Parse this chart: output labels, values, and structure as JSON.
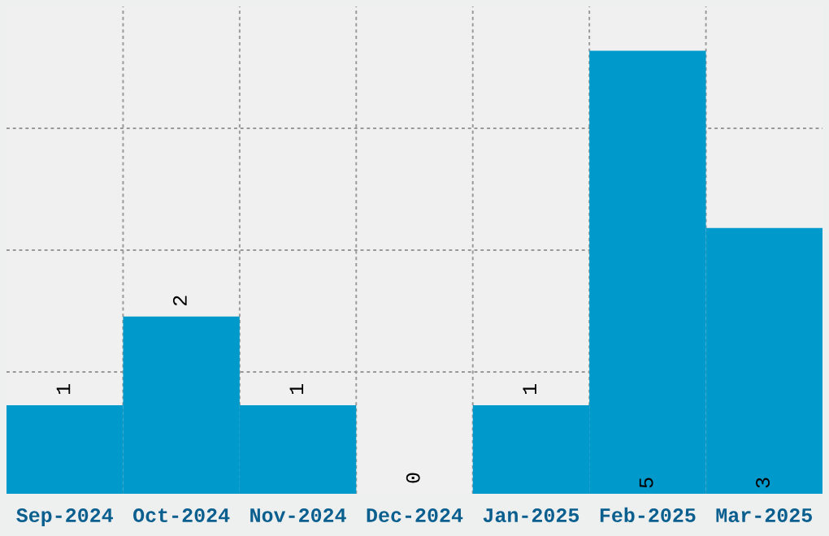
{
  "chart_data": {
    "type": "bar",
    "categories": [
      "Sep-2024",
      "Oct-2024",
      "Nov-2024",
      "Dec-2024",
      "Jan-2025",
      "Feb-2025",
      "Mar-2025"
    ],
    "values": [
      1,
      2,
      1,
      0,
      1,
      5,
      3
    ],
    "color": "#0099cc",
    "ylim": [
      0,
      5.5
    ],
    "yticks": [
      {
        "value": 1.375,
        "label": null
      },
      {
        "value": 2.75,
        "label": null
      },
      {
        "value": 4.125,
        "label": null
      }
    ],
    "tick_labels": "x",
    "data_labels": true,
    "grid": true
  }
}
